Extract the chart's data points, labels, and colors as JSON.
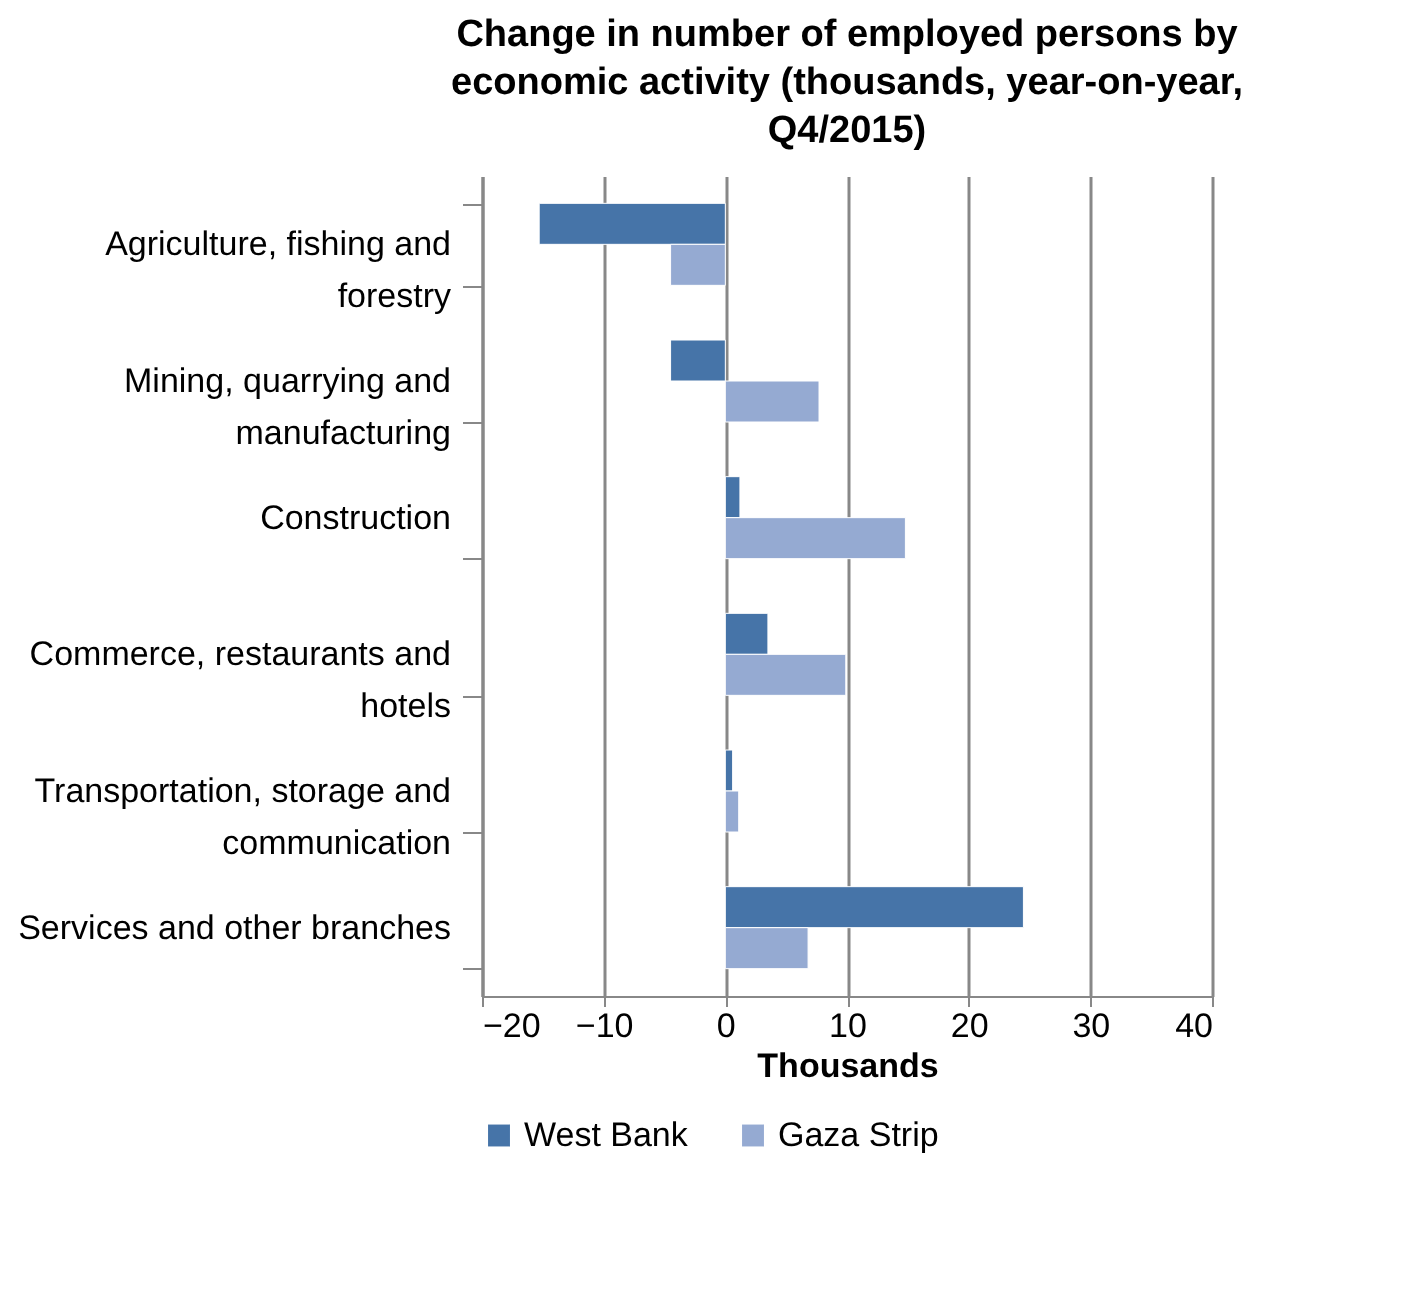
{
  "chart_data": {
    "type": "bar",
    "orientation": "horizontal",
    "title": "Change in number of employed persons by economic activity (thousands, year-on-year, Q4/2015)",
    "xlabel": "Thousands",
    "categories": [
      "Agriculture, fishing and forestry",
      "Mining, quarrying and manufacturing",
      "Construction",
      "Commerce, restaurants and hotels",
      "Transportation, storage and communication",
      "Services and other branches"
    ],
    "series": [
      {
        "name": "West Bank",
        "color": "#4674a8",
        "values": [
          -15.3,
          -4.5,
          1.2,
          3.5,
          0.6,
          24.5
        ]
      },
      {
        "name": "Gaza Strip",
        "color": "#95aad2",
        "values": [
          -4.5,
          7.7,
          14.8,
          9.9,
          1.1,
          6.8
        ]
      }
    ],
    "xlim": [
      -20,
      40
    ],
    "xticks": [
      -20,
      -10,
      0,
      10,
      20,
      30,
      40
    ],
    "grid": "x",
    "legend": "bottom"
  }
}
